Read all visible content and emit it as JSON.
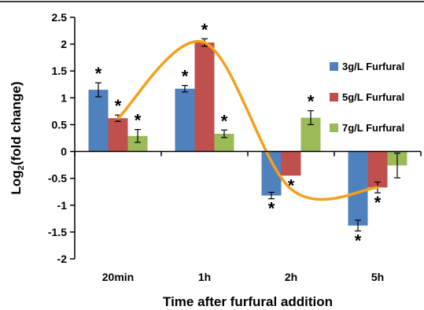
{
  "chart_data": {
    "type": "bar",
    "xlabel": "Time after furfural addition",
    "ylabel_main": "Log",
    "ylabel_sub": "2",
    "ylabel_rest": "(fold change)",
    "categories": [
      "20min",
      "1h",
      "2h",
      "5h"
    ],
    "ylim": [
      -2,
      2.5
    ],
    "yticks": [
      "-2",
      "-1.5",
      "-1",
      "-0.5",
      "0",
      "0.5",
      "1",
      "1.5",
      "2",
      "2.5"
    ],
    "legend_position": "right",
    "series": [
      {
        "name": "3g/L Furfural",
        "color": "#4f81bd",
        "values": [
          1.15,
          1.17,
          -0.82,
          -1.38
        ],
        "errors": [
          0.13,
          0.06,
          0.06,
          0.1
        ],
        "significant": [
          true,
          true,
          true,
          true
        ]
      },
      {
        "name": "5g/L Furfural",
        "color": "#c0504d",
        "values": [
          0.62,
          2.03,
          -0.45,
          -0.67
        ],
        "errors": [
          0.06,
          0.07,
          0.0,
          0.1
        ],
        "significant": [
          true,
          true,
          true,
          true
        ]
      },
      {
        "name": "7g/L Furfural",
        "color": "#9bbb59",
        "values": [
          0.29,
          0.33,
          0.63,
          -0.26
        ],
        "errors": [
          0.12,
          0.07,
          0.13,
          0.23
        ],
        "significant": [
          true,
          true,
          true,
          false
        ]
      }
    ],
    "significance_marker": "*",
    "trend_line": {
      "color": "#f5a01a",
      "y": [
        0.62,
        2.03,
        -0.7,
        -0.67
      ]
    }
  }
}
